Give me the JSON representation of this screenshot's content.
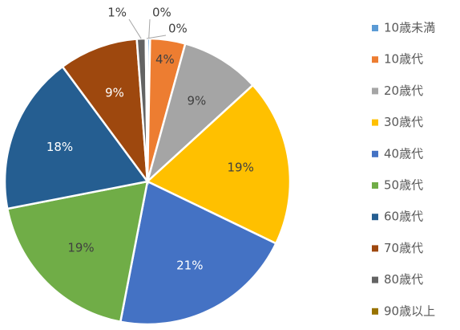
{
  "chart_data": {
    "type": "pie",
    "title": "",
    "categories": [
      "10歳未満",
      "10歳代",
      "20歳代",
      "30歳代",
      "40歳代",
      "50歳代",
      "60歳代",
      "70歳代",
      "80歳代",
      "90歳以上"
    ],
    "values": [
      0.3,
      4,
      9,
      19,
      21,
      19,
      18,
      9,
      1,
      0.2
    ],
    "labels": [
      "0%",
      "4%",
      "9%",
      "19%",
      "21%",
      "19%",
      "18%",
      "9%",
      "1%",
      "0%"
    ],
    "colors": [
      "#5b9bd5",
      "#ed7d31",
      "#a5a5a5",
      "#ffc000",
      "#4472c4",
      "#70ad47",
      "#255e91",
      "#9e480e",
      "#636363",
      "#997300"
    ],
    "label_colors": [
      "#404040",
      "#404040",
      "#404040",
      "#404040",
      "#ffffff",
      "#404040",
      "#ffffff",
      "#ffffff",
      "#404040",
      "#404040"
    ],
    "start_angle_deg": 0,
    "direction": "clockwise",
    "legend_position": "right"
  }
}
